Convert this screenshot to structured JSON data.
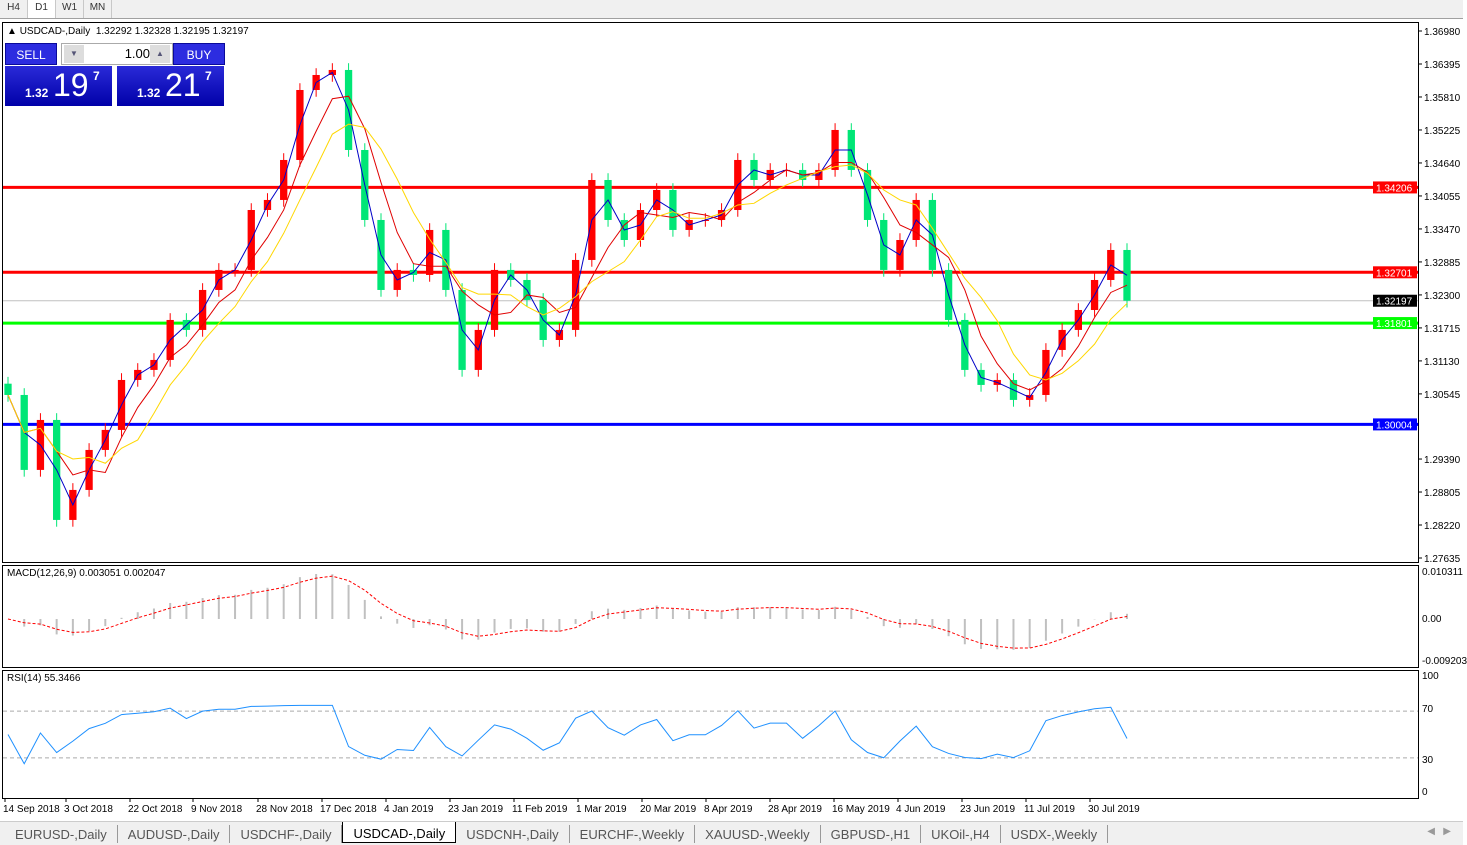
{
  "timeframes": [
    "H4",
    "D1",
    "W1",
    "MN"
  ],
  "active_timeframe": "D1",
  "header": {
    "symbol": "USDCAD-,Daily",
    "ohlc": "1.32292 1.32328 1.32195 1.32197"
  },
  "trade_panel": {
    "sell_label": "SELL",
    "buy_label": "BUY",
    "lot": "1.00",
    "sell_prefix": "1.32",
    "sell_big": "19",
    "sell_sup": "7",
    "buy_prefix": "1.32",
    "buy_big": "21",
    "buy_sup": "7"
  },
  "colors": {
    "bull": "#ff0000",
    "bear": "#00e676",
    "ma_fast": "#0000c8",
    "ma_mid": "#e00000",
    "ma_slow": "#ffd700",
    "macd_hist": "#c0c0c0",
    "macd_signal": "#ff0000",
    "rsi": "#1e90ff"
  },
  "chart_data": {
    "type": "candlestick",
    "ylim": [
      1.27635,
      1.3698
    ],
    "y_tick_labels": [
      "1.36980",
      "1.36395",
      "1.35810",
      "1.35225",
      "1.34640",
      "1.34055",
      "1.33470",
      "1.32885",
      "1.32300",
      "1.31715",
      "1.31130",
      "1.30545",
      "1.29390",
      "1.28805",
      "1.28220",
      "1.27635"
    ],
    "x_tick_labels": [
      "14 Sep 2018",
      "3 Oct 2018",
      "22 Oct 2018",
      "9 Nov 2018",
      "28 Nov 2018",
      "17 Dec 2018",
      "4 Jan 2019",
      "23 Jan 2019",
      "11 Feb 2019",
      "1 Mar 2019",
      "20 Mar 2019",
      "8 Apr 2019",
      "28 Apr 2019",
      "16 May 2019",
      "4 Jun 2019",
      "23 Jun 2019",
      "11 Jul 2019",
      "30 Jul 2019"
    ],
    "close": [
      1.30526,
      1.29197,
      1.30083,
      1.2831,
      1.28842,
      1.29551,
      1.29906,
      1.30792,
      1.3097,
      1.31147,
      1.31856,
      1.31679,
      1.32388,
      1.32743,
      1.32743,
      1.33806,
      1.33984,
      1.34693,
      1.35934,
      1.362,
      1.36289,
      1.3487,
      1.33629,
      1.32388,
      1.32743,
      1.32654,
      1.33452,
      1.32388,
      1.3097,
      1.31679,
      1.32743,
      1.32565,
      1.32211,
      1.31501,
      1.31679,
      1.3292,
      1.34338,
      1.33629,
      1.33274,
      1.33806,
      1.34161,
      1.33452,
      1.33629,
      1.33629,
      1.33806,
      1.34693,
      1.34338,
      1.34516,
      1.34516,
      1.34338,
      1.34516,
      1.35225,
      1.34516,
      1.33629,
      1.32743,
      1.33274,
      1.33984,
      1.32743,
      1.31856,
      1.3097,
      1.30704,
      1.30792,
      1.30438,
      1.30526,
      1.31324,
      1.31679,
      1.32033,
      1.32565,
      1.33097,
      1.32197
    ],
    "horizontal_lines": [
      {
        "price": "1.34206",
        "color": "#ff0000"
      },
      {
        "price": "1.32701",
        "color": "#ff0000"
      },
      {
        "price": "1.31801",
        "color": "#00ff00"
      },
      {
        "price": "1.30004",
        "color": "#0000ff"
      }
    ],
    "current_price": "1.32197"
  },
  "macd": {
    "label": "MACD(12,26,9) 0.003051 0.002047",
    "top": "0.010311",
    "zero": "0.00",
    "bottom": "-0.009203"
  },
  "rsi": {
    "label": "RSI(14) 55.3466",
    "levels": [
      "100",
      "70",
      "30",
      "0"
    ]
  },
  "tabs": [
    "EURUSD-,Daily",
    "AUDUSD-,Daily",
    "USDCHF-,Daily",
    "USDCAD-,Daily",
    "USDCNH-,Daily",
    "EURCHF-,Weekly",
    "XAUUSD-,Weekly",
    "GBPUSD-,H1",
    "UKOil-,H4",
    "USDX-,Weekly"
  ],
  "active_tab": "USDCAD-,Daily"
}
